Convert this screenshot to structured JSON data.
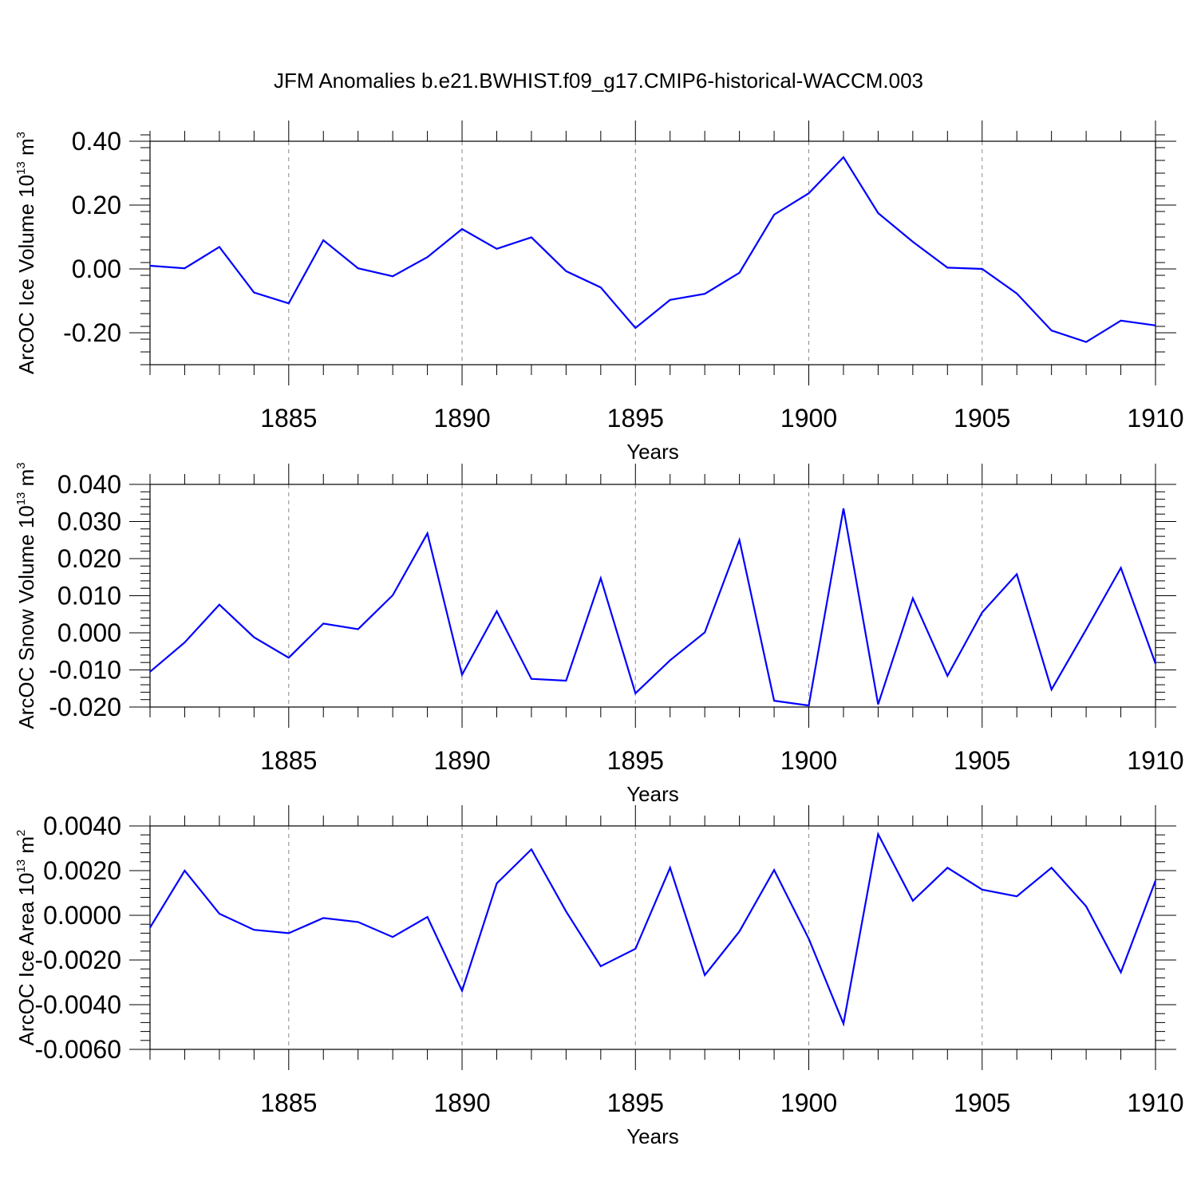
{
  "chart_data": {
    "type": "line",
    "title": "JFM Anomalies b.e21.BWHIST.f09_g17.CMIP6-historical-WACCM.003",
    "line_color": "#0000ff",
    "x": [
      1881,
      1882,
      1883,
      1884,
      1885,
      1886,
      1887,
      1888,
      1889,
      1890,
      1891,
      1892,
      1893,
      1894,
      1895,
      1896,
      1897,
      1898,
      1899,
      1900,
      1901,
      1902,
      1903,
      1904,
      1905,
      1906,
      1907,
      1908,
      1909,
      1910
    ],
    "xlim": [
      1881,
      1910
    ],
    "xticks": [
      1885,
      1890,
      1895,
      1900,
      1905,
      1910
    ],
    "panels": [
      {
        "xlabel": "Years",
        "ylabel": "ArcOC Ice Volume 10",
        "ylabel_exp": "13",
        "ylabel_unit": " m",
        "ylabel_unit_exp": "3",
        "ylim": [
          -0.3,
          0.4
        ],
        "yticks": [
          -0.2,
          0.0,
          0.2,
          0.4
        ],
        "ytick_labels": [
          "-0.20",
          "0.00",
          "0.20",
          "0.40"
        ],
        "values": [
          0.01,
          0.002,
          0.069,
          -0.074,
          -0.108,
          0.09,
          0.002,
          -0.023,
          0.037,
          0.125,
          0.063,
          0.099,
          -0.007,
          -0.058,
          -0.185,
          -0.097,
          -0.078,
          -0.012,
          0.17,
          0.237,
          0.35,
          0.175,
          0.085,
          0.004,
          0.0,
          -0.077,
          -0.193,
          -0.229,
          -0.162,
          -0.177
        ]
      },
      {
        "xlabel": "Years",
        "ylabel": "ArcOC Snow Volume 10",
        "ylabel_exp": "13",
        "ylabel_unit": " m",
        "ylabel_unit_exp": "3",
        "ylim": [
          -0.02,
          0.04
        ],
        "yticks": [
          -0.02,
          -0.01,
          0.0,
          0.01,
          0.02,
          0.03,
          0.04
        ],
        "ytick_labels": [
          "-0.020",
          "-0.010",
          "0.000",
          "0.010",
          "0.020",
          "0.030",
          "0.040"
        ],
        "values": [
          -0.0105,
          -0.0026,
          0.0076,
          -0.0012,
          -0.0067,
          0.0025,
          0.001,
          0.0101,
          0.0268,
          -0.0113,
          0.0058,
          -0.0124,
          -0.0129,
          0.0147,
          -0.0163,
          -0.0074,
          0.0001,
          0.025,
          -0.0183,
          -0.0196,
          0.0335,
          -0.0193,
          0.0093,
          -0.0116,
          0.0055,
          0.0158,
          -0.0153,
          0.0009,
          0.0175,
          -0.0083
        ]
      },
      {
        "xlabel": "Years",
        "ylabel": "ArcOC Ice Area 10",
        "ylabel_exp": "13",
        "ylabel_unit": " m",
        "ylabel_unit_exp": "2",
        "ylim": [
          -0.006,
          0.004
        ],
        "yticks": [
          -0.006,
          -0.004,
          -0.002,
          0.0,
          0.002,
          0.004
        ],
        "ytick_labels": [
          "-0.0060",
          "-0.0040",
          "-0.0020",
          "0.0000",
          "0.0020",
          "0.0040"
        ],
        "values": [
          -0.00055,
          0.002,
          7e-05,
          -0.00065,
          -0.0008,
          -0.00012,
          -0.0003,
          -0.00097,
          -7e-05,
          -0.00338,
          0.00143,
          0.00295,
          0.00017,
          -0.00228,
          -0.0015,
          0.00213,
          -0.00268,
          -0.00072,
          0.00203,
          -0.00105,
          -0.00485,
          0.00363,
          0.00065,
          0.00213,
          0.00115,
          0.00085,
          0.00213,
          0.0004,
          -0.00255,
          0.00155
        ]
      }
    ]
  }
}
